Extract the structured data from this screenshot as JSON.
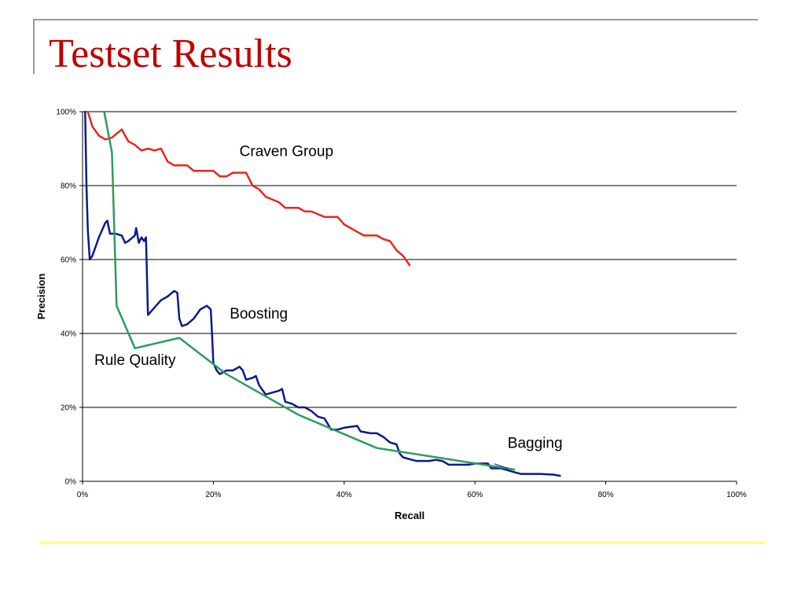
{
  "slide": {
    "title": "Testset Results"
  },
  "chart_data": {
    "type": "line",
    "xlabel": "Recall",
    "ylabel": "Precision",
    "xlim": [
      0,
      1
    ],
    "ylim": [
      0,
      1
    ],
    "x_ticks": [
      0,
      0.2,
      0.4,
      0.6,
      0.8,
      1.0
    ],
    "y_ticks": [
      0,
      0.2,
      0.4,
      0.6,
      0.8,
      1.0
    ],
    "x_tick_labels": [
      "0%",
      "20%",
      "40%",
      "60%",
      "80%",
      "100%"
    ],
    "y_tick_labels": [
      "0%",
      "20%",
      "40%",
      "60%",
      "80%",
      "100%"
    ],
    "grid": "horizontal",
    "legend": "none",
    "series": [
      {
        "name": "Craven Group",
        "color": "#e8261c",
        "points": [
          [
            0.008,
            1.0
          ],
          [
            0.015,
            0.96
          ],
          [
            0.025,
            0.935
          ],
          [
            0.035,
            0.925
          ],
          [
            0.045,
            0.93
          ],
          [
            0.055,
            0.945
          ],
          [
            0.06,
            0.952
          ],
          [
            0.07,
            0.92
          ],
          [
            0.08,
            0.91
          ],
          [
            0.09,
            0.895
          ],
          [
            0.1,
            0.9
          ],
          [
            0.11,
            0.895
          ],
          [
            0.12,
            0.9
          ],
          [
            0.13,
            0.865
          ],
          [
            0.14,
            0.855
          ],
          [
            0.16,
            0.855
          ],
          [
            0.17,
            0.84
          ],
          [
            0.2,
            0.84
          ],
          [
            0.21,
            0.825
          ],
          [
            0.22,
            0.825
          ],
          [
            0.23,
            0.835
          ],
          [
            0.25,
            0.835
          ],
          [
            0.26,
            0.8
          ],
          [
            0.27,
            0.79
          ],
          [
            0.28,
            0.77
          ],
          [
            0.3,
            0.755
          ],
          [
            0.31,
            0.74
          ],
          [
            0.33,
            0.74
          ],
          [
            0.34,
            0.73
          ],
          [
            0.35,
            0.73
          ],
          [
            0.37,
            0.715
          ],
          [
            0.39,
            0.715
          ],
          [
            0.4,
            0.695
          ],
          [
            0.42,
            0.675
          ],
          [
            0.43,
            0.665
          ],
          [
            0.45,
            0.665
          ],
          [
            0.46,
            0.655
          ],
          [
            0.47,
            0.65
          ],
          [
            0.48,
            0.625
          ],
          [
            0.49,
            0.61
          ],
          [
            0.5,
            0.585
          ]
        ]
      },
      {
        "name": "Boosting",
        "color": "#0b1a8c",
        "points": [
          [
            0.004,
            1.0
          ],
          [
            0.006,
            0.8
          ],
          [
            0.008,
            0.68
          ],
          [
            0.011,
            0.6
          ],
          [
            0.015,
            0.61
          ],
          [
            0.025,
            0.66
          ],
          [
            0.035,
            0.7
          ],
          [
            0.038,
            0.705
          ],
          [
            0.042,
            0.67
          ],
          [
            0.05,
            0.67
          ],
          [
            0.06,
            0.665
          ],
          [
            0.065,
            0.645
          ],
          [
            0.07,
            0.65
          ],
          [
            0.08,
            0.665
          ],
          [
            0.082,
            0.685
          ],
          [
            0.086,
            0.645
          ],
          [
            0.09,
            0.66
          ],
          [
            0.094,
            0.65
          ],
          [
            0.097,
            0.66
          ],
          [
            0.1,
            0.45
          ],
          [
            0.11,
            0.47
          ],
          [
            0.12,
            0.49
          ],
          [
            0.13,
            0.5
          ],
          [
            0.14,
            0.515
          ],
          [
            0.145,
            0.51
          ],
          [
            0.148,
            0.44
          ],
          [
            0.152,
            0.42
          ],
          [
            0.16,
            0.425
          ],
          [
            0.17,
            0.44
          ],
          [
            0.18,
            0.465
          ],
          [
            0.19,
            0.475
          ],
          [
            0.196,
            0.465
          ],
          [
            0.198,
            0.4
          ],
          [
            0.2,
            0.32
          ],
          [
            0.205,
            0.3
          ],
          [
            0.21,
            0.29
          ],
          [
            0.22,
            0.3
          ],
          [
            0.23,
            0.3
          ],
          [
            0.24,
            0.31
          ],
          [
            0.245,
            0.3
          ],
          [
            0.25,
            0.275
          ],
          [
            0.26,
            0.28
          ],
          [
            0.265,
            0.285
          ],
          [
            0.27,
            0.26
          ],
          [
            0.28,
            0.235
          ],
          [
            0.29,
            0.24
          ],
          [
            0.3,
            0.245
          ],
          [
            0.305,
            0.25
          ],
          [
            0.31,
            0.215
          ],
          [
            0.32,
            0.21
          ],
          [
            0.33,
            0.2
          ],
          [
            0.34,
            0.2
          ],
          [
            0.35,
            0.19
          ],
          [
            0.36,
            0.175
          ],
          [
            0.37,
            0.17
          ],
          [
            0.375,
            0.155
          ],
          [
            0.38,
            0.14
          ],
          [
            0.39,
            0.14
          ],
          [
            0.4,
            0.145
          ],
          [
            0.42,
            0.15
          ],
          [
            0.425,
            0.135
          ],
          [
            0.44,
            0.13
          ],
          [
            0.45,
            0.13
          ],
          [
            0.46,
            0.12
          ],
          [
            0.47,
            0.105
          ],
          [
            0.48,
            0.1
          ],
          [
            0.485,
            0.075
          ],
          [
            0.49,
            0.065
          ],
          [
            0.5,
            0.06
          ],
          [
            0.51,
            0.055
          ],
          [
            0.53,
            0.055
          ],
          [
            0.54,
            0.058
          ],
          [
            0.55,
            0.055
          ],
          [
            0.56,
            0.045
          ],
          [
            0.58,
            0.045
          ],
          [
            0.59,
            0.045
          ],
          [
            0.6,
            0.048
          ],
          [
            0.62,
            0.048
          ],
          [
            0.625,
            0.035
          ],
          [
            0.64,
            0.035
          ],
          [
            0.65,
            0.03
          ],
          [
            0.66,
            0.025
          ],
          [
            0.67,
            0.02
          ],
          [
            0.7,
            0.02
          ],
          [
            0.72,
            0.018
          ],
          [
            0.73,
            0.015
          ]
        ]
      },
      {
        "name": "Rule Quality",
        "color": "#2e9b5e",
        "points": [
          [
            0.033,
            1.0
          ],
          [
            0.045,
            0.89
          ],
          [
            0.052,
            0.475
          ],
          [
            0.08,
            0.36
          ],
          [
            0.148,
            0.388
          ],
          [
            0.22,
            0.29
          ],
          [
            0.33,
            0.18
          ],
          [
            0.45,
            0.09
          ],
          [
            0.66,
            0.032
          ]
        ]
      },
      {
        "name": "Bagging",
        "color": "#0b1a8c",
        "points": [
          [
            0.63,
            0.047
          ],
          [
            0.65,
            0.035
          ]
        ]
      }
    ],
    "annotations": [
      {
        "text": "Craven Group",
        "x": 0.24,
        "y": 0.88
      },
      {
        "text": "Boosting",
        "x": 0.225,
        "y": 0.44
      },
      {
        "text": "Rule Quality",
        "x": 0.018,
        "y": 0.315
      },
      {
        "text": "Bagging",
        "x": 0.65,
        "y": 0.09
      }
    ]
  }
}
